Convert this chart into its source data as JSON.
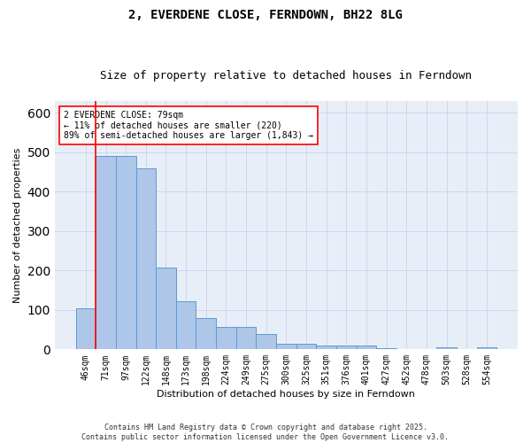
{
  "title": "2, EVERDENE CLOSE, FERNDOWN, BH22 8LG",
  "subtitle": "Size of property relative to detached houses in Ferndown",
  "xlabel": "Distribution of detached houses by size in Ferndown",
  "ylabel": "Number of detached properties",
  "categories": [
    "46sqm",
    "71sqm",
    "97sqm",
    "122sqm",
    "148sqm",
    "173sqm",
    "198sqm",
    "224sqm",
    "249sqm",
    "275sqm",
    "300sqm",
    "325sqm",
    "351sqm",
    "376sqm",
    "401sqm",
    "427sqm",
    "452sqm",
    "478sqm",
    "503sqm",
    "528sqm",
    "554sqm"
  ],
  "values": [
    105,
    490,
    490,
    460,
    207,
    122,
    80,
    57,
    57,
    38,
    15,
    15,
    10,
    10,
    10,
    4,
    0,
    0,
    6,
    0,
    6
  ],
  "bar_color": "#aec6e8",
  "bar_edge_color": "#5b9bd5",
  "vline_color": "#ff0000",
  "vline_x_idx": 0.5,
  "annotation_text": "2 EVERDENE CLOSE: 79sqm\n← 11% of detached houses are smaller (220)\n89% of semi-detached houses are larger (1,843) →",
  "annotation_box_color": "#ffffff",
  "annotation_box_edge": "#ff0000",
  "grid_color": "#c8d4e8",
  "background_color": "#e8eef8",
  "footer": "Contains HM Land Registry data © Crown copyright and database right 2025.\nContains public sector information licensed under the Open Government Licence v3.0.",
  "title_fontsize": 10,
  "subtitle_fontsize": 9,
  "axis_label_fontsize": 8,
  "tick_fontsize": 7,
  "footer_fontsize": 6,
  "annotation_fontsize": 7,
  "ylim": [
    0,
    630
  ]
}
